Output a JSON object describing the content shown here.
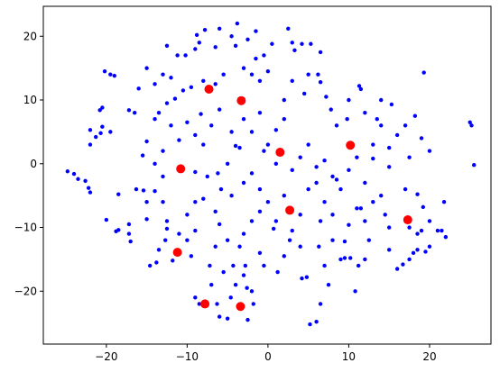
{
  "chart_data": {
    "type": "scatter",
    "xlim": [
      -27.8,
      27.6
    ],
    "ylim": [
      -28.3,
      24.7
    ],
    "xticks": [
      {
        "value": -20,
        "label": "−20"
      },
      {
        "value": -10,
        "label": "−10"
      },
      0,
      10,
      20
    ],
    "yticks": [
      {
        "value": -20,
        "label": "−20"
      },
      {
        "value": -10,
        "label": "−10"
      },
      0,
      10,
      20
    ],
    "grid": false,
    "series": [
      {
        "color": "#0000ff",
        "x": [
          -8.8,
          -8.5,
          -7.8,
          -6,
          -3.8,
          -4.5,
          -2.5,
          -1.5,
          0.5,
          2.5,
          3,
          3.3,
          4.2,
          5.3,
          6.5,
          -4,
          -6.5,
          -9,
          -10.2,
          -11.2,
          -12.5,
          -15,
          -13,
          -12,
          -14,
          -16,
          -17.2,
          -16.5,
          -20.2,
          -19.5,
          -19,
          -20.5,
          -20.8,
          -20.5,
          -19.5,
          -21.3,
          -20.7,
          -22,
          -22,
          -24.8,
          -24,
          -23.5,
          -22.6,
          -22.2,
          -22,
          -20,
          -18.5,
          -16.3,
          -15.4,
          -15,
          -14,
          -13,
          -12.5,
          -12.5,
          -12.7,
          -13.5,
          -13.8,
          -14.6,
          -17.2,
          -17.2,
          -17,
          -18.5,
          -18.8,
          -15,
          -11,
          -9,
          -10,
          -9,
          -8,
          -6.5,
          -6,
          -5,
          -6.5,
          -7.2,
          -7,
          -9,
          -8.5,
          -6.3,
          -6,
          -5,
          -4.6,
          -4,
          -3,
          -2.6,
          -2.5,
          -1.8,
          -2,
          -2.8,
          -3.5,
          -3,
          -2,
          -1,
          -1,
          -0.5,
          1.2,
          2,
          2.7,
          3,
          4,
          4,
          4.2,
          4.8,
          5.2,
          6,
          6.5,
          7.5,
          7,
          6.3,
          6.5,
          7,
          8,
          8,
          9,
          9.5,
          10.2,
          10.8,
          11.2,
          12,
          12.5,
          12,
          11,
          13,
          14,
          14.5,
          15,
          15,
          16,
          16.7,
          17.5,
          18,
          18.5,
          19,
          18.5,
          19.5,
          20,
          21,
          21.5,
          21.8,
          19.2,
          18.5,
          17,
          15,
          15,
          16,
          17,
          18.2,
          19,
          20,
          17.5,
          19.3,
          15.3,
          14,
          13.5,
          12,
          11.5,
          11.3,
          10,
          9.8,
          8.5,
          7.8,
          7.2,
          6.2,
          6.5,
          5,
          4.5,
          3,
          2,
          2,
          1,
          0,
          -0.5,
          1,
          3,
          4,
          5,
          6,
          7,
          8,
          9,
          10,
          11,
          12,
          13,
          11.5,
          10,
          9.5,
          25,
          25.2,
          25.5,
          -1,
          -2,
          -3,
          -1.5,
          -0.5,
          0,
          -5.5,
          -6.5,
          -8,
          -9.5,
          -10.5,
          -11.5,
          -12.5,
          -13.5,
          -14,
          -12,
          -10,
          -9,
          -8,
          -11,
          -13,
          -15,
          -15.5,
          -14,
          -13,
          -9,
          -7.5,
          -6.2,
          -5,
          -4,
          -3.5,
          -4.5,
          -3,
          -2,
          -1,
          -6,
          -8.3,
          -7,
          -5.8,
          -4.5,
          -3,
          -2,
          -1,
          0,
          1,
          2,
          -10,
          -9.5,
          -11.8,
          -5.5,
          -4.3,
          0.7,
          5,
          6,
          8.5,
          13,
          14,
          17.5,
          20,
          22
        ],
        "values": [
          20.2,
          19,
          21,
          21.2,
          22,
          20,
          19.5,
          20.8,
          18.8,
          21.2,
          19,
          17.8,
          18.8,
          18.8,
          17.5,
          18.5,
          18.3,
          18,
          17,
          17,
          18.5,
          15,
          14,
          13.5,
          12.5,
          11.8,
          8.4,
          8,
          14.5,
          14,
          13.8,
          8.8,
          8.4,
          5.8,
          5,
          4.2,
          4.8,
          5.3,
          3,
          -1.2,
          -1.6,
          -2.4,
          -2.7,
          -3.8,
          -4.5,
          -8.8,
          -4.8,
          -4,
          -4.2,
          -6,
          -4.3,
          -6,
          -9,
          -10.2,
          -12,
          -13.5,
          -15.5,
          -16,
          -9.5,
          -11,
          -12.2,
          -10.4,
          -10.6,
          -8.7,
          -11,
          -10.5,
          -8,
          -6,
          -5.5,
          -7.5,
          -9.5,
          -12,
          -13,
          -16,
          -19,
          -21,
          -22,
          -22,
          -24,
          -24.3,
          -21,
          -19,
          -17.5,
          -19.5,
          -24.5,
          -22,
          -20,
          -16,
          -13,
          -11,
          -9,
          -7.5,
          -14,
          -16,
          -17,
          -14.5,
          -12,
          -10.5,
          -8,
          -13,
          -18,
          -17.8,
          -25.2,
          -24.8,
          -22,
          -19,
          -16,
          -13,
          -9,
          -6,
          -8,
          -12,
          -15,
          -14.8,
          -14.8,
          -20,
          -16,
          -15,
          -12,
          -9,
          -7,
          -6,
          -5,
          -8,
          -10,
          -13.5,
          -16.5,
          -15.8,
          -15,
          -14,
          -11,
          -10.5,
          -13.5,
          -13.8,
          -13,
          -10.5,
          -10.5,
          -6,
          -6.8,
          -4.8,
          -4,
          -0.5,
          2.5,
          4.5,
          6,
          7.5,
          4,
          2,
          1,
          14.3,
          9.3,
          10,
          7,
          8,
          11.7,
          12.2,
          10,
          7,
          6,
          8.5,
          10.5,
          14,
          12.8,
          14,
          11,
          13,
          10,
          7,
          5.3,
          3,
          2,
          0,
          -1,
          1,
          3,
          -0.5,
          0.5,
          -2,
          -4,
          -1,
          1,
          -3,
          0.8,
          -7,
          -9.6,
          -12.2,
          6.5,
          6,
          -0.2,
          13,
          14,
          15,
          16.5,
          17,
          14.5,
          14,
          12.5,
          13,
          12,
          11.5,
          10.2,
          9.5,
          8,
          7,
          6,
          6.5,
          4.5,
          3,
          3.7,
          2,
          3.5,
          1.3,
          0,
          -2,
          -1.3,
          -2,
          -1.5,
          0,
          2.8,
          2.5,
          5,
          7,
          5,
          8,
          8.5,
          7.8,
          6,
          -4,
          -5,
          -3,
          -1.5,
          -4,
          -6,
          -9,
          -5,
          -12,
          -14.5,
          -15.2,
          -17,
          -16,
          -10.2,
          -4,
          -3,
          -2.5,
          3,
          6,
          -10,
          -9,
          -11.5
        ]
      },
      {
        "color": "#ff0000",
        "x": [
          -7.3,
          -3.3,
          1.5,
          10.2,
          -10.8,
          2.7,
          17.3,
          -11.2,
          -7.8,
          -3.4
        ],
        "values": [
          11.7,
          9.9,
          1.8,
          2.9,
          -0.8,
          -7.3,
          -8.8,
          -13.9,
          -22.0,
          -22.4
        ]
      }
    ]
  }
}
